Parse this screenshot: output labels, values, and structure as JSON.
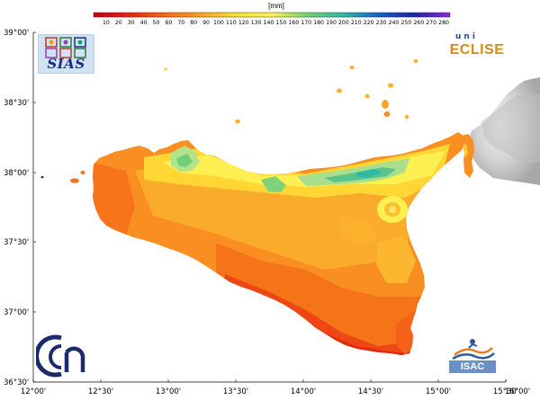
{
  "colorbar": {
    "unit": "[mm]",
    "ticks": [
      "10",
      "20",
      "30",
      "40",
      "50",
      "60",
      "70",
      "80",
      "90",
      "100",
      "110",
      "120",
      "130",
      "140",
      "150",
      "160",
      "170",
      "180",
      "190",
      "200",
      "210",
      "220",
      "230",
      "240",
      "250",
      "260",
      "270",
      "280"
    ],
    "colors": {
      "low": "#c4000c",
      "red": "#e8230f",
      "orange": "#f56a14",
      "amber": "#fb9f26",
      "yellow": "#ffe135",
      "pale_yellow": "#fff45c",
      "green": "#72d16e",
      "teal": "#2fb8a6",
      "blue": "#1560c9",
      "navy": "#1b23a3",
      "purple": "#8a2be2",
      "relief_grey": "#c9c9c9"
    }
  },
  "axes": {
    "lat_labels": [
      "39°00'",
      "38°30'",
      "38°00'",
      "37°30'",
      "37°00'",
      "36°30'"
    ],
    "lon_labels": [
      "12°00'",
      "12°30'",
      "13°00'",
      "13°30'",
      "14°00'",
      "14°30'",
      "15°00'",
      "15°30'",
      "16°00'"
    ]
  },
  "logos": {
    "sias": {
      "text": "SIAS"
    },
    "eclise": {
      "text": "ECLISE",
      "sub": "uni"
    },
    "isac": {
      "text": "ISAC"
    }
  }
}
